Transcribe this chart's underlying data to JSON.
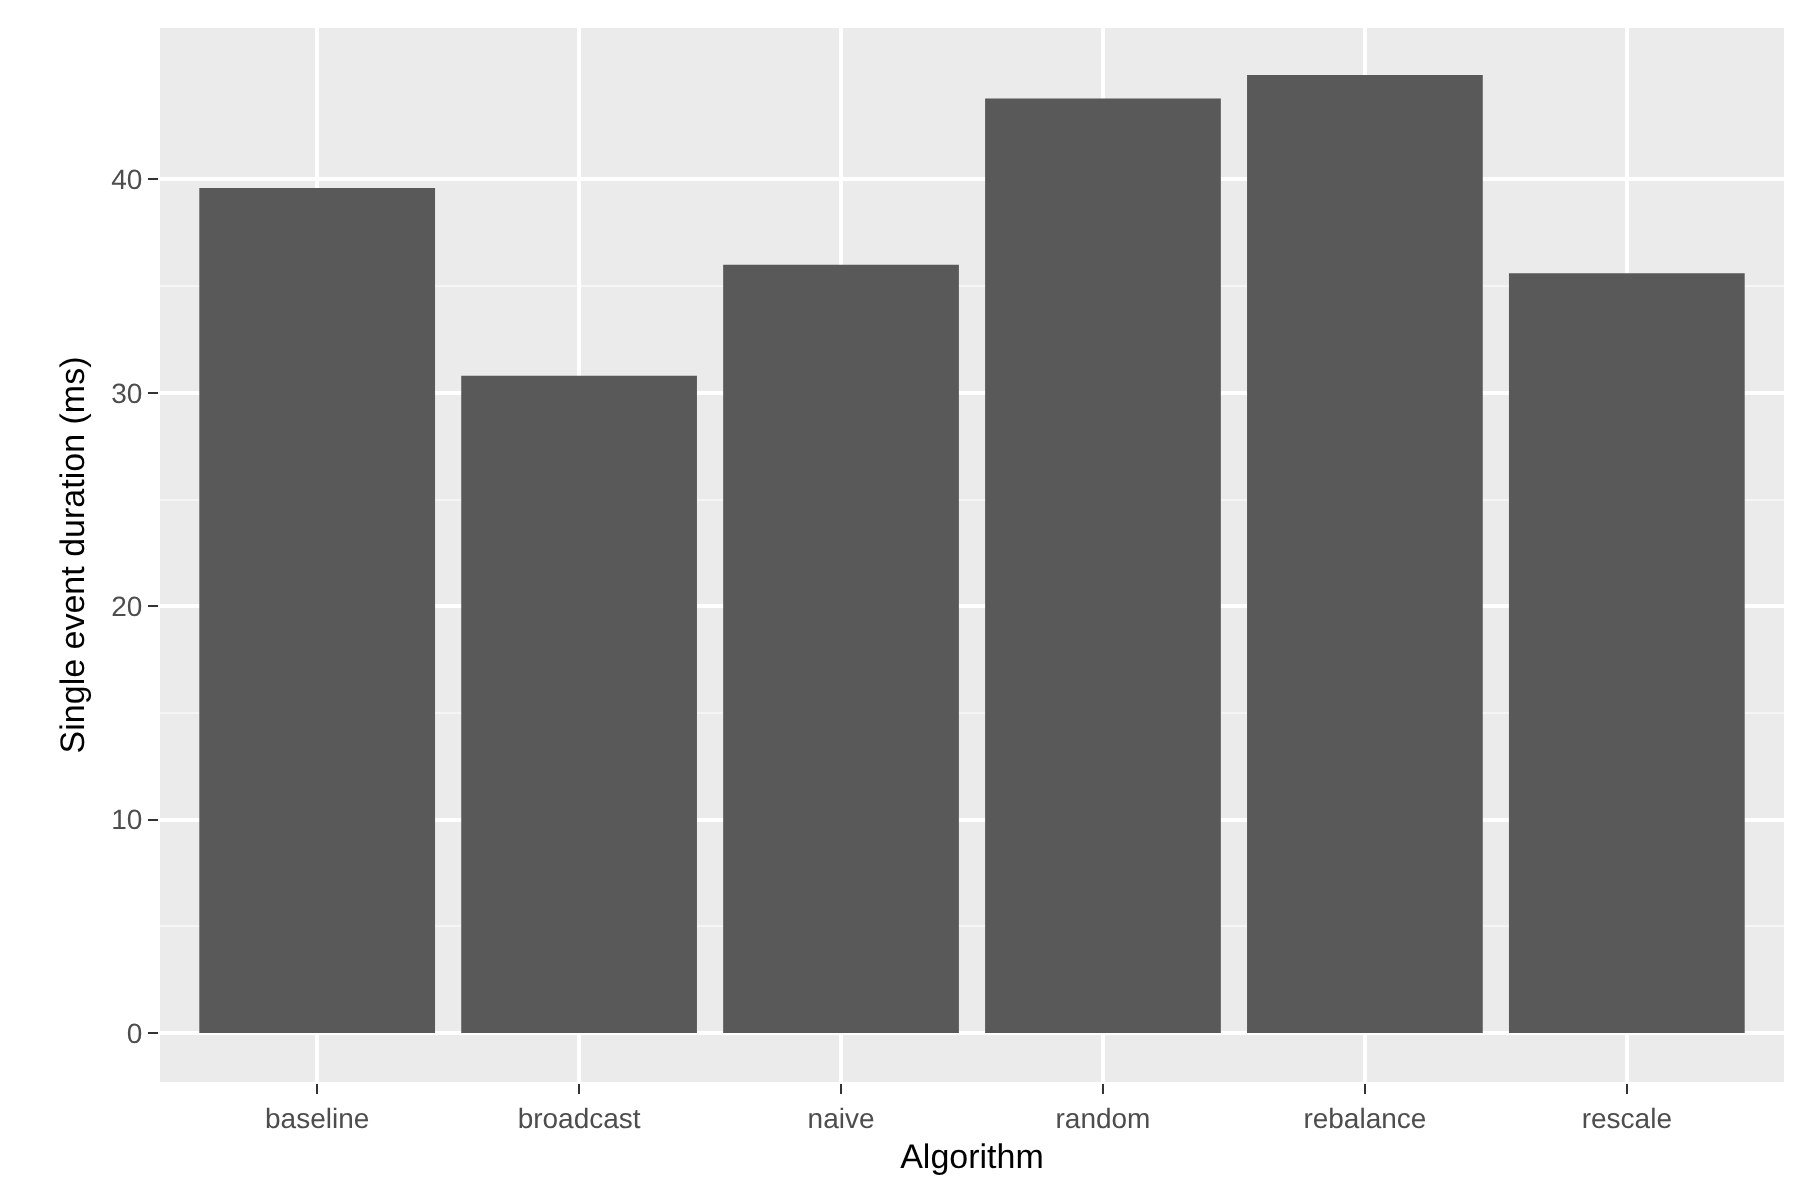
{
  "chart_data": {
    "type": "bar",
    "xlabel": "Algorithm",
    "ylabel": "Single event duration (ms)",
    "categories": [
      "baseline",
      "broadcast",
      "naive",
      "random",
      "rebalance",
      "rescale"
    ],
    "values": [
      39.6,
      30.8,
      36.0,
      43.8,
      44.9,
      35.6
    ],
    "color": "#595959",
    "ylim": [
      -2.3,
      47.1
    ],
    "yticks": [
      0,
      10,
      20,
      30,
      40
    ],
    "grid": true
  }
}
